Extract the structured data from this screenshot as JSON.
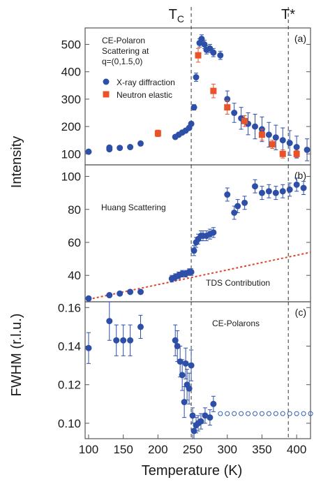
{
  "figure": {
    "ylabel_top": "Intensity",
    "xlabel": "Temperature (K)",
    "markers": [
      {
        "label_main": "T",
        "label_sub": "C",
        "x": 248
      },
      {
        "label_main": "T*",
        "label_sub": "",
        "x": 388
      }
    ]
  },
  "colors": {
    "xray": "#2d4fa8",
    "neutron": "#e8532a",
    "tds": "#e0432a",
    "open": "#2d5fb8"
  },
  "chart_data": [
    {
      "type": "scatter",
      "panel_label": "(a)",
      "annotation_lines": [
        "CE-Polaron",
        "Scattering at",
        "q=(0,1.5,0)"
      ],
      "ylabel": "",
      "xlim": [
        95,
        420
      ],
      "ylim": [
        60,
        560
      ],
      "yticks": [
        "100",
        "200",
        "300",
        "400",
        "500"
      ],
      "legend": {
        "placement": "top-left"
      },
      "series": [
        {
          "name": "X-ray diffraction",
          "marker": "circle",
          "x": [
            100,
            130,
            130,
            145,
            160,
            175,
            225,
            230,
            235,
            240,
            245,
            248,
            252,
            255,
            260,
            263,
            267,
            270,
            275,
            280,
            290,
            300,
            310,
            320,
            330,
            340,
            350,
            360,
            370,
            380,
            390,
            400,
            415
          ],
          "y": [
            108,
            117,
            123,
            122,
            125,
            138,
            162,
            170,
            178,
            185,
            195,
            210,
            270,
            380,
            505,
            520,
            500,
            480,
            485,
            470,
            460,
            300,
            250,
            230,
            210,
            200,
            190,
            170,
            160,
            150,
            140,
            125,
            115
          ],
          "err": [
            5,
            6,
            6,
            6,
            6,
            7,
            6,
            6,
            6,
            6,
            7,
            8,
            10,
            15,
            15,
            15,
            15,
            15,
            15,
            15,
            15,
            30,
            35,
            40,
            40,
            45,
            45,
            45,
            45,
            45,
            45,
            40,
            40
          ]
        },
        {
          "name": "Neutron elastic",
          "marker": "square",
          "x": [
            200,
            258,
            280,
            300,
            325,
            350,
            365,
            380,
            400
          ],
          "y": [
            175,
            460,
            330,
            270,
            220,
            170,
            135,
            100,
            100
          ],
          "err": [
            12,
            25,
            25,
            25,
            20,
            20,
            15,
            15,
            12
          ]
        }
      ]
    },
    {
      "type": "scatter",
      "panel_label": "(b)",
      "annotation_lines": [
        "Huang Scattering"
      ],
      "line_label": "TDS Contribution",
      "ylabel": "",
      "xlim": [
        95,
        420
      ],
      "ylim": [
        24,
        107
      ],
      "yticks": [
        "40",
        "60",
        "80",
        "100"
      ],
      "series": [
        {
          "name": "",
          "marker": "circle",
          "x": [
            100,
            130,
            145,
            160,
            175,
            220,
            225,
            230,
            235,
            240,
            245,
            248,
            252,
            255,
            258,
            262,
            265,
            270,
            275,
            280,
            300,
            310,
            315,
            325,
            340,
            350,
            360,
            370,
            380,
            390,
            400,
            410
          ],
          "y": [
            26,
            28,
            29,
            30,
            30,
            38,
            39,
            40,
            41,
            41,
            42,
            42,
            55,
            60,
            62,
            64,
            64,
            64,
            65,
            66,
            89,
            78,
            82,
            84,
            94,
            90,
            91,
            90,
            91,
            92,
            95,
            93
          ],
          "err": [
            1,
            1,
            1,
            1,
            1,
            2,
            2,
            2,
            2,
            2,
            2,
            2,
            3,
            3,
            3,
            3,
            3,
            3,
            3,
            3,
            4,
            4,
            4,
            4,
            4,
            4,
            4,
            4,
            4,
            4,
            4,
            4
          ]
        }
      ],
      "tds_line": {
        "x": [
          100,
          420
        ],
        "y": [
          25.5,
          54
        ]
      }
    },
    {
      "type": "scatter",
      "panel_label": "(c)",
      "annotation_lines": [
        "CE-Polarons"
      ],
      "ylabel": "FWHM (r.l.u.)",
      "xlim": [
        95,
        420
      ],
      "ylim": [
        0.092,
        0.163
      ],
      "yticks": [
        "0.10",
        "0.12",
        "0.14",
        "0.16"
      ],
      "xticks": [
        "100",
        "150",
        "200",
        "250",
        "300",
        "350",
        "400"
      ],
      "series": [
        {
          "name": "",
          "marker": "circle",
          "x": [
            100,
            130,
            140,
            150,
            160,
            175,
            225,
            228,
            232,
            235,
            238,
            240,
            242,
            245,
            248,
            250,
            252,
            255,
            258,
            262,
            268,
            275,
            280
          ],
          "y": [
            0.139,
            0.153,
            0.143,
            0.143,
            0.143,
            0.15,
            0.143,
            0.14,
            0.132,
            0.125,
            0.111,
            0.131,
            0.12,
            0.118,
            0.13,
            0.104,
            0.096,
            0.099,
            0.1,
            0.101,
            0.104,
            0.103,
            0.11
          ],
          "err": [
            0.008,
            0.01,
            0.008,
            0.008,
            0.008,
            0.006,
            0.008,
            0.008,
            0.008,
            0.008,
            0.008,
            0.008,
            0.008,
            0.008,
            0.008,
            0.004,
            0.004,
            0.004,
            0.004,
            0.004,
            0.004,
            0.004,
            0.004
          ]
        },
        {
          "name": "",
          "marker": "open-circle",
          "x": [
            290,
            300,
            310,
            320,
            330,
            340,
            350,
            360,
            370,
            380,
            390,
            400,
            410,
            420
          ],
          "y": [
            0.105,
            0.105,
            0.105,
            0.105,
            0.105,
            0.105,
            0.105,
            0.105,
            0.105,
            0.105,
            0.105,
            0.105,
            0.105,
            0.105
          ]
        }
      ]
    }
  ]
}
